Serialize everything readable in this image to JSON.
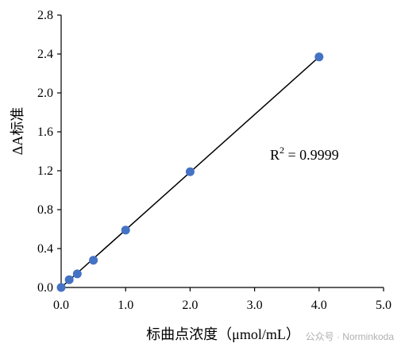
{
  "chart_data": {
    "type": "scatter",
    "xlabel": "标曲点浓度（μmol/mL）",
    "ylabel": "ΔA标准",
    "xlim": [
      0,
      5
    ],
    "ylim": [
      0,
      2.8
    ],
    "x_ticks": [
      "0.0",
      "1.0",
      "2.0",
      "3.0",
      "4.0",
      "5.0"
    ],
    "y_ticks": [
      "0.0",
      "0.4",
      "0.8",
      "1.2",
      "1.6",
      "2.0",
      "2.4",
      "2.8"
    ],
    "x_tick_values": [
      0,
      1,
      2,
      3,
      4,
      5
    ],
    "y_tick_values": [
      0,
      0.4,
      0.8,
      1.2,
      1.6,
      2.0,
      2.4,
      2.8
    ],
    "points": [
      {
        "x": 0,
        "y": 0.0
      },
      {
        "x": 0.125,
        "y": 0.08
      },
      {
        "x": 0.25,
        "y": 0.14
      },
      {
        "x": 0.5,
        "y": 0.28
      },
      {
        "x": 1.0,
        "y": 0.59
      },
      {
        "x": 2.0,
        "y": 1.19
      },
      {
        "x": 4.0,
        "y": 2.37
      }
    ],
    "trendline": {
      "type": "linear",
      "x": [
        0,
        4.0
      ],
      "y": [
        0.0,
        2.37
      ]
    },
    "annotation": {
      "prefix": "R",
      "sup": "2",
      "suffix": " = 0.9999"
    },
    "marker_color": "#4472c4",
    "line_color": "#000000",
    "grid": false,
    "legend": "none"
  },
  "watermark": "公众号 · Norminkoda"
}
